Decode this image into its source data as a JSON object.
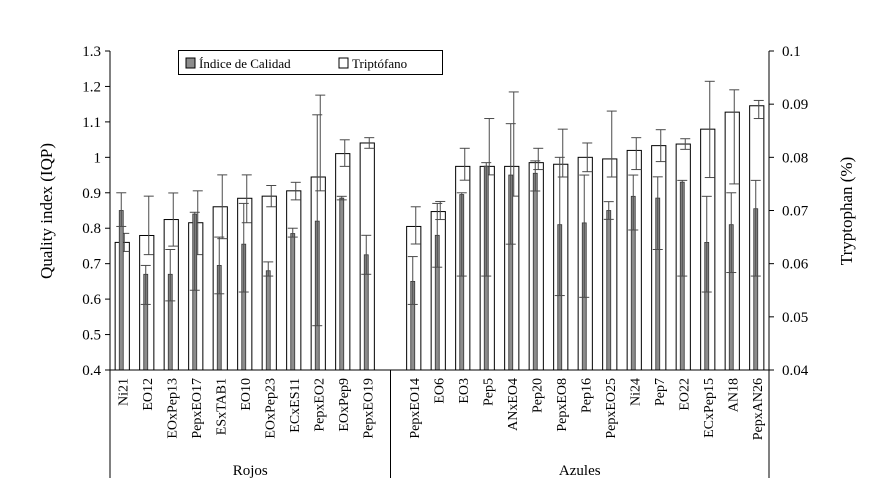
{
  "chart_data": {
    "type": "bar",
    "title": "",
    "ylabel": "Quality index (IQP)",
    "y2label": "Tryptophan (%)",
    "ylim": [
      0.4,
      1.3
    ],
    "y2lim": [
      0.04,
      0.1
    ],
    "yticks": [
      "0.4",
      "0.5",
      "0.6",
      "0.7",
      "0.8",
      "0.9",
      "1",
      "1.1",
      "1.2",
      "1.3"
    ],
    "y2ticks": [
      "0.04",
      "0.05",
      "0.06",
      "0.07",
      "0.08",
      "0.09",
      "0.1"
    ],
    "legend_position": "top-left",
    "groups": [
      {
        "label": "Rojos",
        "count": 11
      },
      {
        "label": "Azules",
        "count": 15
      }
    ],
    "categories": [
      "Ni21",
      "EO12",
      "EOxPep13",
      "PepxEO17",
      "ESxTAB1",
      "EO10",
      "EOxPep23",
      "ECxES11",
      "PepxEO2",
      "EOxPep9",
      "PepxEO19",
      "PepxEO14",
      "EO6",
      "EO3",
      "Pep5",
      "ANxEO4",
      "Pep20",
      "PepxEO8",
      "Pep16",
      "PepxEO25",
      "Ni24",
      "Pep7",
      "EO22",
      "ECxPep15",
      "AN18",
      "PepxAN26"
    ],
    "series": [
      {
        "name": "Índice de Calidad",
        "axis": "left",
        "color": "#8c8c8c",
        "values": [
          0.85,
          0.67,
          0.67,
          0.84,
          0.695,
          0.755,
          0.68,
          0.785,
          0.82,
          0.885,
          0.725,
          0.65,
          0.78,
          0.895,
          0.975,
          0.95,
          0.955,
          0.81,
          0.815,
          0.85,
          0.89,
          0.885,
          0.93,
          0.76,
          0.81,
          0.855
        ],
        "err_low": [
          0.805,
          0.585,
          0.595,
          0.625,
          0.615,
          0.62,
          0.665,
          0.775,
          0.525,
          0.88,
          0.67,
          0.585,
          0.69,
          0.665,
          0.665,
          0.755,
          0.905,
          0.61,
          0.605,
          0.825,
          0.795,
          0.74,
          0.665,
          0.62,
          0.675,
          0.665
        ],
        "err_high": [
          0.9,
          0.695,
          0.74,
          0.845,
          0.775,
          0.87,
          0.705,
          0.8,
          1.12,
          0.89,
          0.78,
          0.72,
          0.87,
          0.9,
          0.985,
          1.095,
          0.99,
          1.0,
          0.95,
          0.875,
          0.95,
          0.945,
          0.935,
          0.89,
          0.9,
          0.935
        ]
      },
      {
        "name": "Triptófano",
        "axis": "right",
        "color": "#ffffff",
        "values": [
          0.064,
          0.0653,
          0.0683,
          0.0677,
          0.0707,
          0.0723,
          0.0727,
          0.0737,
          0.0763,
          0.0807,
          0.0827,
          0.067,
          0.0698,
          0.0783,
          0.0783,
          0.0783,
          0.079,
          0.0787,
          0.08,
          0.0797,
          0.0813,
          0.0822,
          0.0825,
          0.0853,
          0.0885,
          0.0897
        ],
        "err_low": [
          0.0623,
          0.0617,
          0.0633,
          0.0617,
          0.0647,
          0.0677,
          0.0707,
          0.072,
          0.0737,
          0.0783,
          0.0817,
          0.0637,
          0.0683,
          0.0757,
          0.0767,
          0.0727,
          0.0777,
          0.0763,
          0.0773,
          0.0763,
          0.0777,
          0.0792,
          0.0815,
          0.0762,
          0.075,
          0.0873
        ],
        "err_high": [
          0.0657,
          0.0727,
          0.0733,
          0.0737,
          0.0767,
          0.0767,
          0.0747,
          0.0753,
          0.0917,
          0.0833,
          0.0837,
          0.0707,
          0.0717,
          0.0817,
          0.0873,
          0.0923,
          0.0817,
          0.0853,
          0.0827,
          0.0887,
          0.0837,
          0.0852,
          0.0835,
          0.0943,
          0.0927,
          0.0907
        ]
      }
    ]
  }
}
